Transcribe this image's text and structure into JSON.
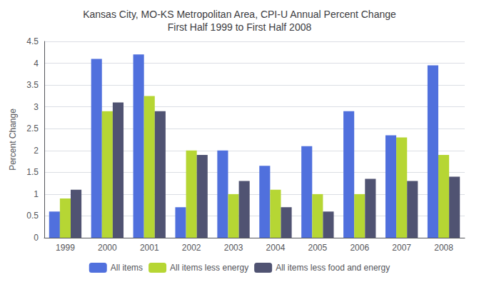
{
  "chart_data": {
    "type": "bar",
    "title": "Kansas City, MO-KS Metropolitan Area, CPI-U Annual Percent Change\nFirst Half 1999 to First Half 2008",
    "ylabel": "Percent Change",
    "categories": [
      "1999",
      "2000",
      "2001",
      "2002",
      "2003",
      "2004",
      "2005",
      "2006",
      "2007",
      "2008"
    ],
    "series": [
      {
        "name": "All items",
        "values": [
          0.6,
          4.1,
          4.2,
          0.7,
          2.0,
          1.65,
          2.1,
          2.9,
          2.35,
          3.95
        ]
      },
      {
        "name": "All items less energy",
        "values": [
          0.9,
          2.9,
          3.25,
          2.0,
          1.0,
          1.1,
          1.0,
          1.0,
          2.3,
          1.9
        ]
      },
      {
        "name": "All items less food and energy",
        "values": [
          1.1,
          3.1,
          2.9,
          1.9,
          1.3,
          0.7,
          0.6,
          1.35,
          1.3,
          1.4
        ]
      }
    ],
    "ylim": [
      0,
      4.5
    ],
    "yticks": [
      0,
      0.5,
      1,
      1.5,
      2,
      2.5,
      3,
      3.5,
      4,
      4.5
    ],
    "grid": true,
    "legend": "bottom"
  }
}
